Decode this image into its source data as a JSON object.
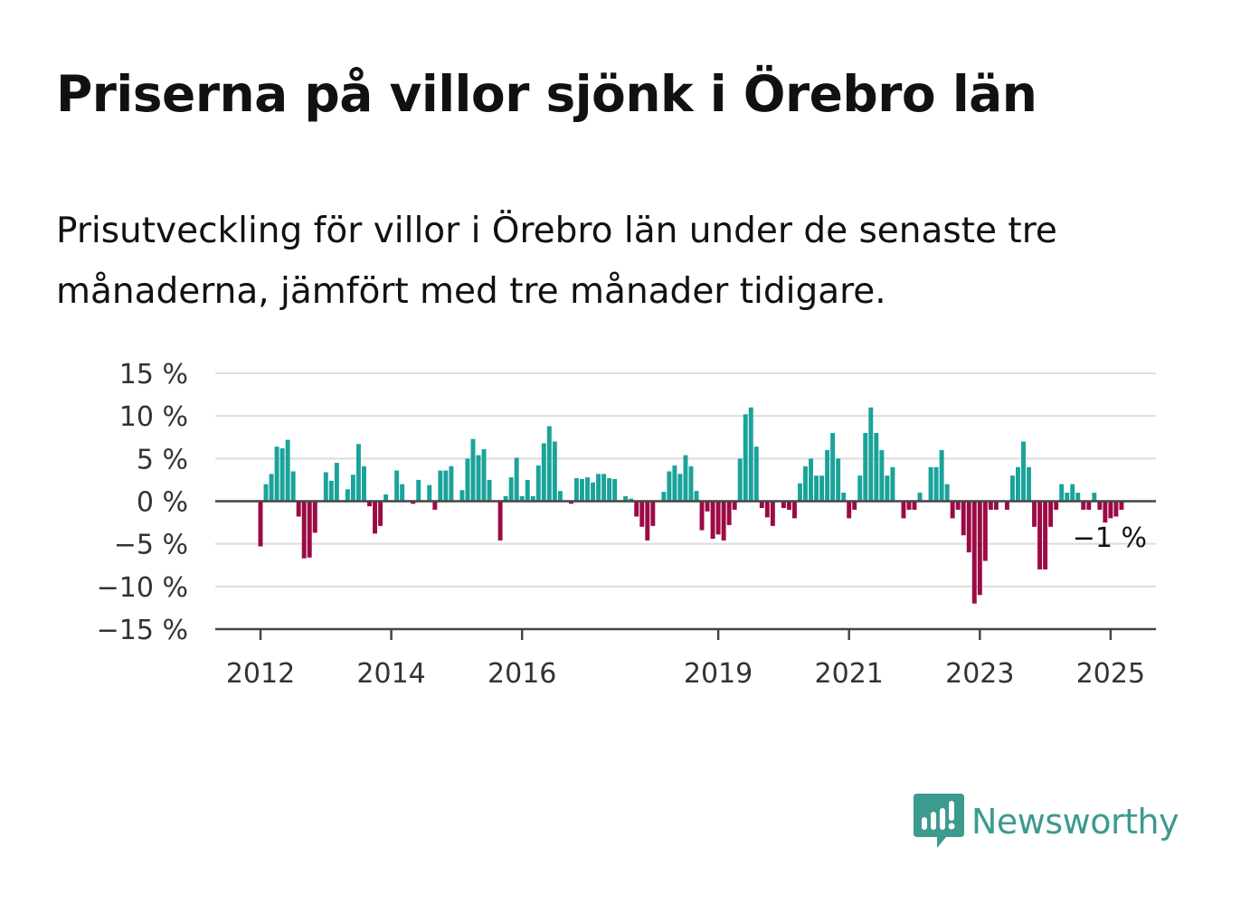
{
  "title": "Priserna på villor sjönk i Örebro län",
  "subtitle": "Prisutveckling för villor i Örebro län under de senaste tre månaderna, jämfört med tre månader tidigare.",
  "brand": {
    "name": "Newsworthy",
    "icon": "newsworthy-logo-icon",
    "color": "#3c9a8f"
  },
  "chart_data": {
    "type": "bar",
    "title": "",
    "xlabel": "",
    "ylabel": "",
    "ylim": [
      -15,
      15
    ],
    "y_ticks": [
      15,
      10,
      5,
      0,
      -5,
      -10,
      -15
    ],
    "y_tick_labels": [
      "15 %",
      "10 %",
      "5 %",
      "0 %",
      "−5 %",
      "−10 %",
      "−15 %"
    ],
    "x_ticks": [
      2012,
      2014,
      2016,
      2019,
      2021,
      2023,
      2025
    ],
    "x_tick_labels": [
      "2012",
      "2014",
      "2016",
      "2019",
      "2021",
      "2023",
      "2025"
    ],
    "x_start": "2012-01",
    "frequency": "monthly",
    "positive_color": "#1aa39a",
    "negative_color": "#9c0a45",
    "grid": true,
    "legend": "none",
    "annotation": {
      "text": "−1 %",
      "x": "2025-03",
      "y": -1
    },
    "values": [
      -5.3,
      2.0,
      3.2,
      6.4,
      6.2,
      7.2,
      3.5,
      -1.8,
      -6.7,
      -6.6,
      -3.7,
      0.1,
      3.4,
      2.4,
      4.5,
      0.1,
      1.4,
      3.1,
      6.7,
      4.1,
      -0.6,
      -3.8,
      -2.9,
      0.8,
      0.1,
      3.6,
      2.0,
      0.1,
      -0.3,
      2.5,
      0.1,
      1.9,
      -1.0,
      3.6,
      3.6,
      4.1,
      0.1,
      1.3,
      5.0,
      7.3,
      5.4,
      6.1,
      2.5,
      0.1,
      -4.6,
      0.6,
      2.8,
      5.1,
      0.6,
      2.5,
      0.6,
      4.2,
      6.8,
      8.8,
      7.0,
      1.2,
      0.1,
      -0.3,
      2.7,
      2.6,
      2.8,
      2.2,
      3.2,
      3.2,
      2.7,
      2.6,
      0.1,
      0.6,
      0.3,
      -1.8,
      -3.0,
      -4.6,
      -2.9,
      0.1,
      1.1,
      3.5,
      4.2,
      3.2,
      5.4,
      4.1,
      1.2,
      -3.4,
      -1.2,
      -4.4,
      -3.9,
      -4.6,
      -2.8,
      -1.0,
      5.0,
      10.2,
      11.0,
      6.4,
      -0.8,
      -1.9,
      -2.9,
      0.1,
      -0.8,
      -1.0,
      -2.0,
      2.1,
      4.1,
      5.0,
      3.0,
      3.0,
      6.0,
      8.0,
      5.0,
      1.0,
      -2.0,
      -1.0,
      3.0,
      8.0,
      11.0,
      8.0,
      6.0,
      3.0,
      4.0,
      0.1,
      -2.0,
      -1.0,
      -1.0,
      1.0,
      0.1,
      4.0,
      4.0,
      6.0,
      2.0,
      -2.0,
      -1.0,
      -4.0,
      -6.0,
      -12.0,
      -11.0,
      -7.0,
      -1.0,
      -1.0,
      0.1,
      -1.0,
      3.0,
      4.0,
      7.0,
      4.0,
      -3.0,
      -8.0,
      -8.0,
      -3.0,
      -1.0,
      2.0,
      1.0,
      2.0,
      1.0,
      -1.0,
      -1.0,
      1.0,
      -1.0,
      -2.5,
      -2.0,
      -1.8,
      -1.0
    ]
  }
}
